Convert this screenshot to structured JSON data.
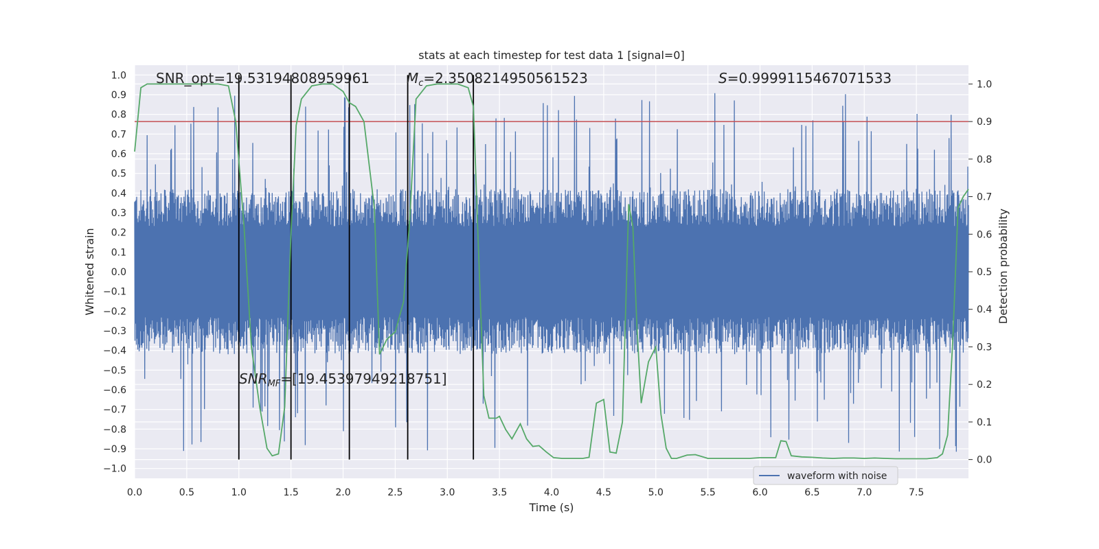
{
  "chart_data": {
    "type": "line",
    "title": "stats at each timestep for test data 1 [signal=0]",
    "xlabel": "Time (s)",
    "ylabel_left": "Whitened strain",
    "ylabel_right": "Detection probability",
    "xlim": [
      0.0,
      8.0
    ],
    "ylim_left": [
      -1.05,
      1.05
    ],
    "ylim_right": [
      -0.05,
      1.05
    ],
    "grid": true,
    "legend": {
      "placement": "lower-right",
      "entries": [
        "waveform with noise"
      ]
    },
    "x_ticks": [
      "0.0",
      "0.5",
      "1.0",
      "1.5",
      "2.0",
      "2.5",
      "3.0",
      "3.5",
      "4.0",
      "4.5",
      "5.0",
      "5.5",
      "6.0",
      "6.5",
      "7.0",
      "7.5"
    ],
    "y_ticks_left": [
      "1.0",
      "0.9",
      "0.8",
      "0.7",
      "0.6",
      "0.5",
      "0.4",
      "0.3",
      "0.2",
      "0.1",
      "0.0",
      "−0.1",
      "−0.2",
      "−0.3",
      "−0.4",
      "−0.5",
      "−0.6",
      "−0.7",
      "−0.8",
      "−0.9",
      "−1.0"
    ],
    "y_ticks_right": [
      "1.0",
      "0.9",
      "0.8",
      "0.7",
      "0.6",
      "0.5",
      "0.4",
      "0.3",
      "0.2",
      "0.1",
      "0.0"
    ],
    "annotations": {
      "snr_opt": "SNR_opt=19.53194808959961",
      "mc_symbol": "M",
      "mc_sub": "c",
      "mc_value": "=2.3508214950561523",
      "s_symbol": "S",
      "s_value": "=0.9999115467071533",
      "snr_mf_symbol": "SNR",
      "snr_mf_sub": "MF",
      "snr_mf_value": "=[19.45397949218751]"
    },
    "threshold": {
      "y_right": 0.9,
      "color": "#c44e52"
    },
    "vertical_markers_x": [
      1.0,
      1.5,
      2.06,
      2.62,
      3.25
    ],
    "series": [
      {
        "name": "waveform with noise",
        "axis": "left",
        "color": "#4c72b0",
        "envelope": {
          "typical_abs": 0.42,
          "peak_max": 0.97,
          "peak_min": -0.94
        }
      },
      {
        "axis": "right",
        "color": "#55a868",
        "x": [
          0.0,
          0.06,
          0.12,
          0.2,
          0.3,
          0.4,
          0.5,
          0.6,
          0.7,
          0.8,
          0.9,
          0.97,
          1.05,
          1.12,
          1.2,
          1.27,
          1.32,
          1.38,
          1.44,
          1.5,
          1.55,
          1.6,
          1.7,
          1.8,
          1.9,
          2.0,
          2.06,
          2.12,
          2.2,
          2.3,
          2.35,
          2.42,
          2.5,
          2.58,
          2.64,
          2.7,
          2.8,
          2.9,
          3.0,
          3.1,
          3.2,
          3.25,
          3.3,
          3.35,
          3.4,
          3.47,
          3.5,
          3.56,
          3.62,
          3.7,
          3.76,
          3.82,
          3.88,
          3.95,
          4.02,
          4.1,
          4.2,
          4.3,
          4.36,
          4.43,
          4.5,
          4.56,
          4.62,
          4.68,
          4.74,
          4.78,
          4.82,
          4.86,
          4.93,
          5.0,
          5.05,
          5.1,
          5.15,
          5.2,
          5.3,
          5.38,
          5.5,
          5.6,
          5.7,
          5.8,
          5.9,
          6.0,
          6.1,
          6.15,
          6.2,
          6.25,
          6.3,
          6.4,
          6.5,
          6.6,
          6.7,
          6.8,
          6.9,
          7.0,
          7.1,
          7.2,
          7.3,
          7.4,
          7.5,
          7.6,
          7.7,
          7.75,
          7.8,
          7.85,
          7.9,
          7.95,
          8.0
        ],
        "y": [
          0.82,
          0.99,
          1.0,
          1.0,
          1.0,
          1.0,
          1.0,
          1.0,
          1.0,
          1.0,
          0.995,
          0.9,
          0.62,
          0.3,
          0.14,
          0.03,
          0.01,
          0.015,
          0.14,
          0.6,
          0.89,
          0.96,
          0.995,
          1.0,
          1.0,
          0.98,
          0.95,
          0.94,
          0.9,
          0.67,
          0.28,
          0.32,
          0.34,
          0.42,
          0.64,
          0.96,
          0.995,
          1.0,
          1.0,
          1.0,
          0.99,
          0.94,
          0.55,
          0.17,
          0.11,
          0.11,
          0.115,
          0.08,
          0.055,
          0.095,
          0.055,
          0.035,
          0.037,
          0.02,
          0.005,
          0.003,
          0.003,
          0.003,
          0.006,
          0.15,
          0.16,
          0.02,
          0.017,
          0.1,
          0.68,
          0.62,
          0.35,
          0.15,
          0.26,
          0.3,
          0.12,
          0.03,
          0.003,
          0.003,
          0.012,
          0.013,
          0.003,
          0.003,
          0.003,
          0.003,
          0.003,
          0.005,
          0.005,
          0.005,
          0.05,
          0.048,
          0.01,
          0.007,
          0.006,
          0.004,
          0.003,
          0.004,
          0.004,
          0.003,
          0.004,
          0.003,
          0.002,
          0.002,
          0.002,
          0.002,
          0.005,
          0.015,
          0.065,
          0.32,
          0.67,
          0.7,
          0.72
        ]
      }
    ]
  }
}
